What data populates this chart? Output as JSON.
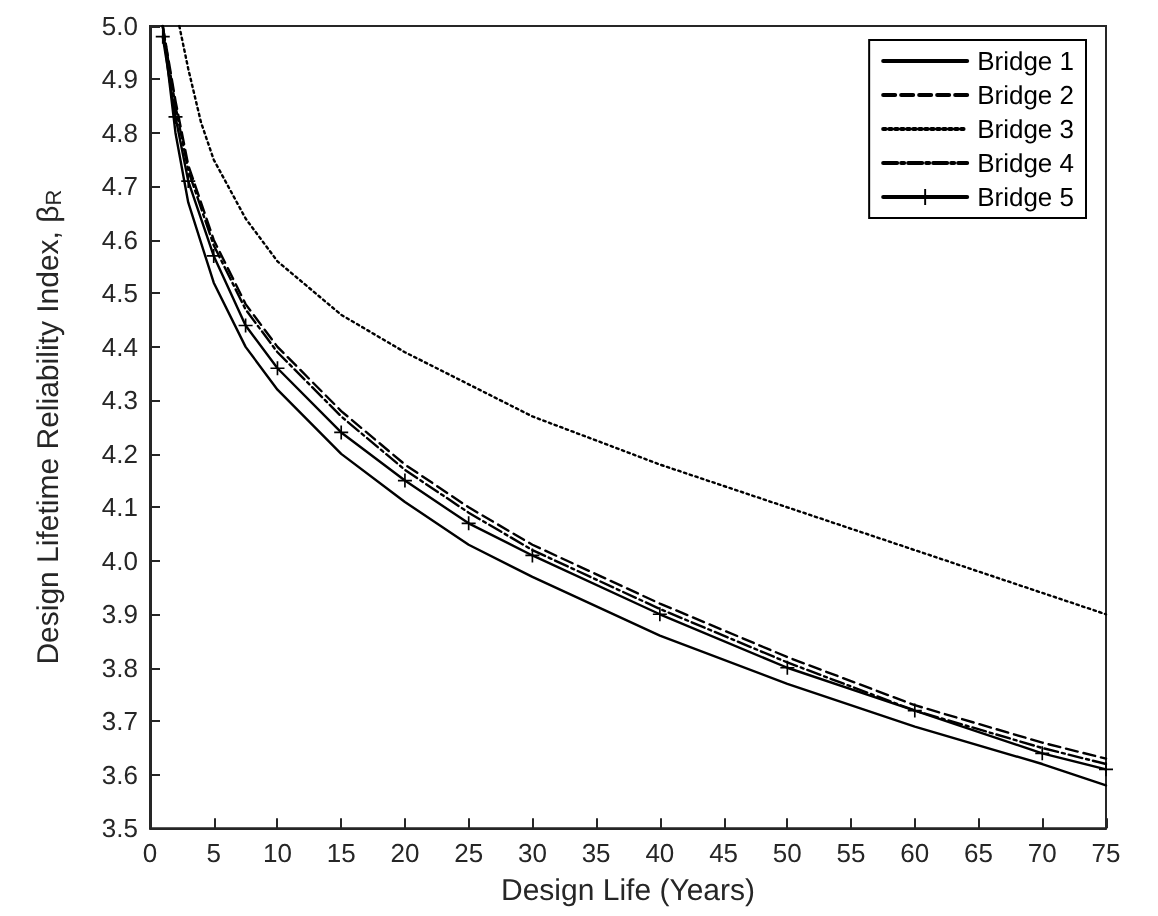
{
  "chart_data": {
    "type": "line",
    "xlabel": "Design Life (Years)",
    "ylabel": "Design Lifetime Reliability Index, β$_{R}$",
    "x": [
      1,
      2,
      3,
      5,
      7.5,
      10,
      15,
      20,
      25,
      30,
      40,
      50,
      60,
      70,
      75
    ],
    "series": [
      {
        "name": "Bridge 1",
        "color": "#000000",
        "line_style": "solid",
        "marker": "none",
        "values": [
          5.0,
          4.8,
          4.67,
          4.52,
          4.4,
          4.32,
          4.2,
          4.11,
          4.03,
          3.97,
          3.86,
          3.77,
          3.69,
          3.62,
          3.58
        ]
      },
      {
        "name": "Bridge 2",
        "color": "#000000",
        "line_style": "dashed",
        "marker": "none",
        "values": [
          5.0,
          4.86,
          4.74,
          4.6,
          4.48,
          4.4,
          4.28,
          4.18,
          4.1,
          4.03,
          3.92,
          3.82,
          3.73,
          3.66,
          3.63
        ]
      },
      {
        "name": "Bridge 3",
        "color": "#000000",
        "line_style": "dotted",
        "marker": "none",
        "x": [
          2.3,
          3,
          4,
          5,
          7.5,
          10,
          15,
          20,
          25,
          30,
          40,
          50,
          60,
          70,
          75
        ],
        "values": [
          5.0,
          4.92,
          4.82,
          4.75,
          4.64,
          4.56,
          4.46,
          4.39,
          4.33,
          4.27,
          4.18,
          4.1,
          4.02,
          3.94,
          3.9
        ]
      },
      {
        "name": "Bridge 4",
        "color": "#000000",
        "line_style": "dashdot",
        "marker": "none",
        "values": [
          5.0,
          4.85,
          4.73,
          4.59,
          4.47,
          4.39,
          4.27,
          4.17,
          4.09,
          4.02,
          3.91,
          3.81,
          3.72,
          3.65,
          3.62
        ]
      },
      {
        "name": "Bridge 5",
        "color": "#000000",
        "line_style": "solid",
        "marker": "cross",
        "values": [
          4.98,
          4.83,
          4.71,
          4.57,
          4.44,
          4.36,
          4.24,
          4.15,
          4.07,
          4.01,
          3.9,
          3.8,
          3.72,
          3.64,
          3.61
        ]
      }
    ],
    "xlim": [
      0,
      75
    ],
    "xticks": [
      0,
      5,
      10,
      15,
      20,
      25,
      30,
      35,
      40,
      45,
      50,
      55,
      60,
      65,
      70,
      75
    ],
    "ylim": [
      3.5,
      5.0
    ],
    "yticks": [
      3.5,
      3.6,
      3.7,
      3.8,
      3.9,
      {
        "value": 4,
        "label": "4.0"
      },
      4.1,
      4.2,
      4.3,
      4.4,
      4.5,
      4.6,
      4.7,
      4.8,
      4.9,
      {
        "value": 5,
        "label": "5.0"
      }
    ],
    "legend": "top right",
    "grid": false
  }
}
